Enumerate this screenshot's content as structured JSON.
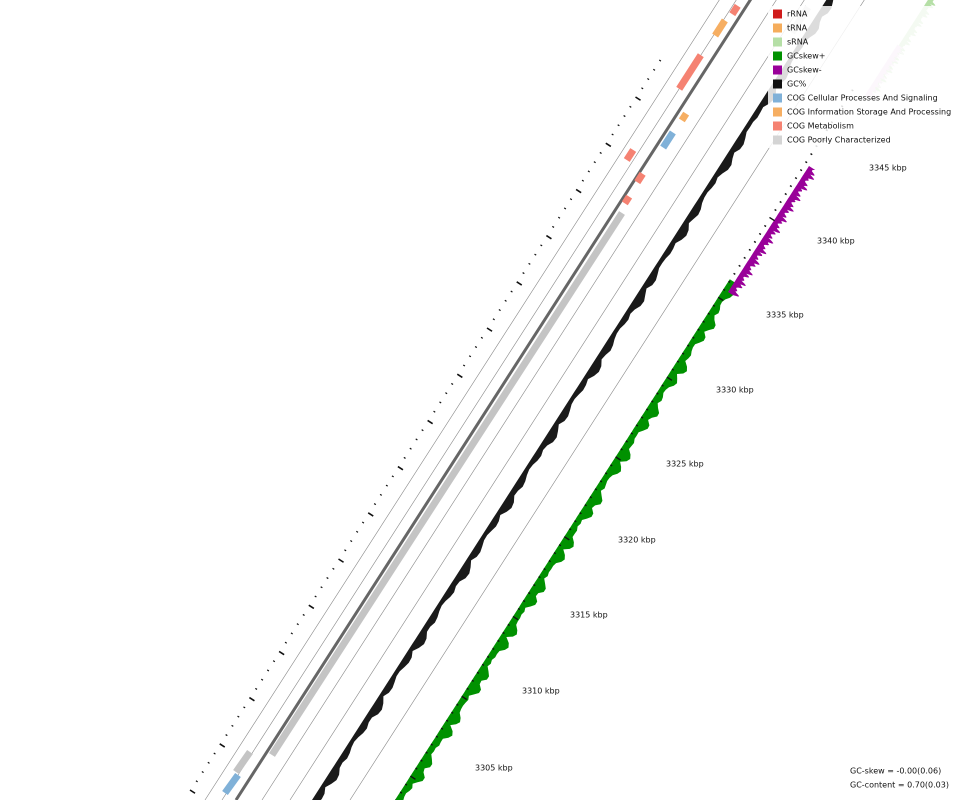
{
  "legend": [
    {
      "label": "rRNA",
      "color": "#d01c1c"
    },
    {
      "label": "tRNA",
      "color": "#f5ad5c"
    },
    {
      "label": "sRNA",
      "color": "#b5dfa6"
    },
    {
      "label": "GCskew+",
      "color": "#009100"
    },
    {
      "label": "GCskew-",
      "color": "#990099"
    },
    {
      "label": "GC%",
      "color": "#111111"
    },
    {
      "label": "COG Cellular Processes And Signaling",
      "color": "#80b1d8"
    },
    {
      "label": "COG Information Storage And Processing",
      "color": "#f6ae62"
    },
    {
      "label": "COG Metabolism",
      "color": "#f58272"
    },
    {
      "label": "COG Poorly Characterized",
      "color": "#d4d4d4"
    }
  ],
  "ticks": [
    "3305 kbp",
    "3310 kbp",
    "3315 kbp",
    "3320 kbp",
    "3325 kbp",
    "3330 kbp",
    "3335 kbp",
    "3340 kbp",
    "3345 kbp"
  ],
  "stats": [
    "GC-skew = -0.00(0.06)",
    "GC-content = 0.70(0.03)"
  ]
}
